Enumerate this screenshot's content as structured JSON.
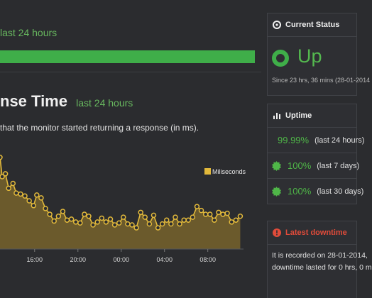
{
  "status_strip": {
    "subtitle": "last 24 hours",
    "uptime_fraction": 0.9999,
    "bar_color": "#3fae49"
  },
  "response_time": {
    "title": "nse Time",
    "subtitle": "last 24 hours",
    "description": "that the monitor started returning a response (in ms)."
  },
  "chart_data": {
    "type": "area",
    "legend": [
      "Miliseconds"
    ],
    "legend_placement": "top-right",
    "series_color": "#e2b93b",
    "fill_color": "#6b5a2c",
    "x_tick_labels": [
      "16:00",
      "20:00",
      "00:00",
      "04:00",
      "08:00"
    ],
    "x_ticks": [
      16,
      20,
      24,
      28,
      32
    ],
    "x_range": [
      12.8,
      35.3
    ],
    "ylim": [
      0,
      100
    ],
    "grid": false,
    "series": [
      {
        "name": "Miliseconds",
        "x": [
          12.8,
          13.0,
          13.3,
          13.6,
          14.0,
          14.3,
          14.7,
          15.1,
          15.5,
          15.9,
          16.2,
          16.6,
          17.0,
          17.4,
          17.8,
          18.2,
          18.6,
          19.0,
          19.4,
          19.8,
          20.2,
          20.6,
          21.0,
          21.4,
          21.8,
          22.2,
          22.6,
          23.0,
          23.4,
          23.8,
          24.2,
          24.6,
          25.0,
          25.4,
          25.8,
          26.2,
          26.6,
          27.0,
          27.4,
          27.8,
          28.2,
          28.6,
          29.0,
          29.4,
          29.8,
          30.2,
          30.6,
          31.0,
          31.4,
          31.8,
          32.2,
          32.6,
          33.0,
          33.4,
          33.8,
          34.2,
          34.6,
          35.0
        ],
        "values": [
          95,
          75,
          78,
          63,
          68,
          58,
          57,
          55,
          50,
          45,
          56,
          53,
          42,
          36,
          29,
          34,
          39,
          30,
          31,
          28,
          27,
          36,
          34,
          25,
          28,
          32,
          28,
          31,
          25,
          27,
          33,
          26,
          25,
          22,
          38,
          33,
          26,
          35,
          22,
          26,
          30,
          26,
          33,
          26,
          30,
          30,
          33,
          44,
          40,
          36,
          36,
          30,
          38,
          36,
          37,
          28,
          30,
          34
        ]
      }
    ]
  },
  "current_status": {
    "header": "Current Status",
    "value": "Up",
    "since": "Since 23 hrs, 36 mins (28-01-2014",
    "color": "#3fae49"
  },
  "uptime": {
    "header": "Uptime",
    "rows": [
      {
        "value": "99.99%",
        "period": "(last 24 hours)"
      },
      {
        "value": "100%",
        "period": "(last 7 days)"
      },
      {
        "value": "100%",
        "period": "(last 30 days)"
      }
    ]
  },
  "latest_downtime": {
    "header": "Latest downtime",
    "line1": "It is recorded on 28-01-2014,",
    "line2": "downtime lasted for 0 hrs, 0 m",
    "color": "#e04b3a"
  }
}
